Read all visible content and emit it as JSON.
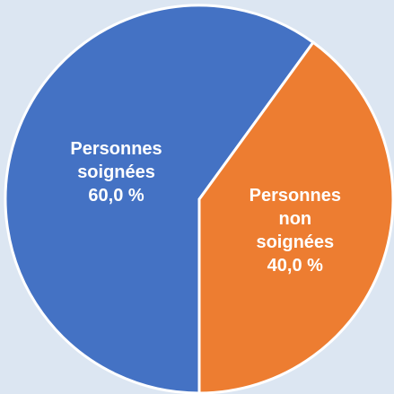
{
  "chart_data": {
    "type": "pie",
    "categories": [
      "Personnes soignées",
      "Personnes non soignées"
    ],
    "values": [
      60,
      40
    ],
    "value_labels": [
      "60,0 %",
      "40,0 %"
    ],
    "colors": [
      "#4472c4",
      "#ed7d31"
    ]
  }
}
